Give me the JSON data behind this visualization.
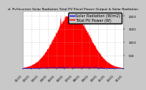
{
  "title": "d. Pv/Inverter Solar Radiation Total PV Panel Power Output & Solar Radiation",
  "background_color": "#c8c8c8",
  "plot_bg_color": "#ffffff",
  "grid_color": "#aaaaaa",
  "n_points": 365,
  "pv_color": "#ff0000",
  "solar_color": "#0000ff",
  "pv_label": "Total PV Power (W)",
  "solar_label": "Solar Radiation (W/m2)",
  "ylim": [
    0,
    2200
  ],
  "yticks": [
    500,
    1000,
    1500,
    2000
  ],
  "ytick_labels": [
    "500",
    "1000",
    "1500",
    "2000"
  ],
  "legend_fontsize": 3.5,
  "title_fontsize": 3.2,
  "tick_fontsize": 2.8,
  "xtick_labels": [
    "01/01",
    "02/01",
    "03/01",
    "04/01",
    "05/01",
    "06/01",
    "07/01",
    "08/01",
    "09/01",
    "10/01",
    "11/01",
    "12/01",
    "01/01"
  ],
  "pv_peak": 2000,
  "solar_max": 300
}
